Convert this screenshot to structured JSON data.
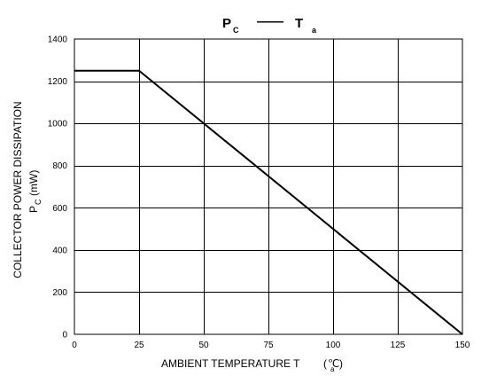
{
  "chart_data": {
    "type": "line",
    "title": {
      "main_1": "P",
      "sub_1": "C",
      "dash": "——",
      "main_2": "T",
      "sub_2": "a"
    },
    "xlabel": {
      "text": "AMBIENT TEMPERATURE T",
      "paren_open": "(",
      "unit": "℃",
      "sub": "a",
      "paren_close": ")"
    },
    "ylabel": {
      "line1": "COLLECTOR POWER DISSIPATION",
      "symbol": "P",
      "symbol_sub": "C",
      "unit": "(mW)"
    },
    "xlim": [
      0,
      150
    ],
    "ylim": [
      0,
      1400
    ],
    "x_ticks": [
      0,
      25,
      50,
      75,
      100,
      125,
      150
    ],
    "y_ticks": [
      0,
      200,
      400,
      600,
      800,
      1000,
      1200,
      1400
    ],
    "grid": true,
    "series": [
      {
        "x": [
          0,
          25,
          150
        ],
        "y": [
          1250,
          1250,
          0
        ]
      }
    ],
    "colors": {
      "line": "#000000",
      "grid": "#000000"
    }
  }
}
